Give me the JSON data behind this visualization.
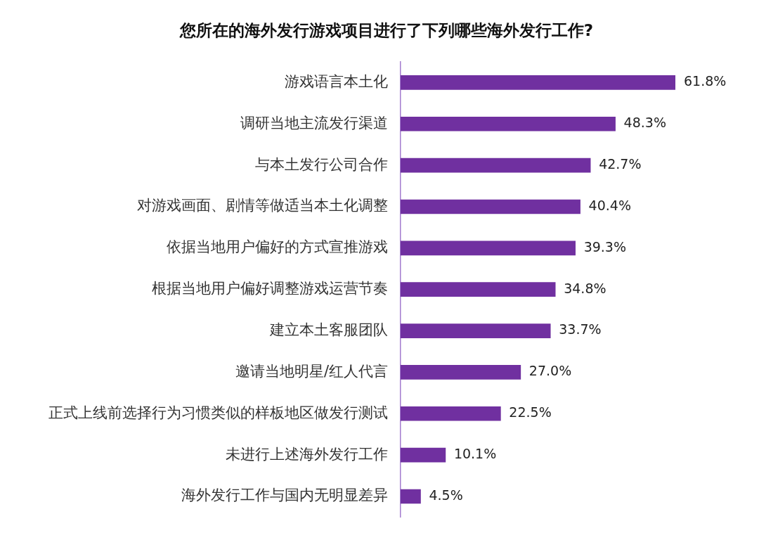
{
  "chart_data": {
    "type": "bar",
    "orientation": "horizontal",
    "title": "您所在的海外发行游戏项目进行了下列哪些海外发行工作?",
    "categories": [
      "游戏语言本土化",
      "调研当地主流发行渠道",
      "与本土发行公司合作",
      "对游戏画面、剧情等做适当本土化调整",
      "依据当地用户偏好的方式宣推游戏",
      "根据当地用户偏好调整游戏运营节奏",
      "建立本土客服团队",
      "邀请当地明星/红人代言",
      "正式上线前选择行为习惯类似的样板地区做发行测试",
      "未进行上述海外发行工作",
      "海外发行工作与国内无明显差异"
    ],
    "values": [
      61.8,
      48.3,
      42.7,
      40.4,
      39.3,
      34.8,
      33.7,
      27.0,
      22.5,
      10.1,
      4.5
    ],
    "value_labels": [
      "61.8%",
      "48.3%",
      "42.7%",
      "40.4%",
      "39.3%",
      "34.8%",
      "33.7%",
      "27.0%",
      "22.5%",
      "10.1%",
      "4.5%"
    ],
    "color": "#7030a0",
    "grid": false
  }
}
